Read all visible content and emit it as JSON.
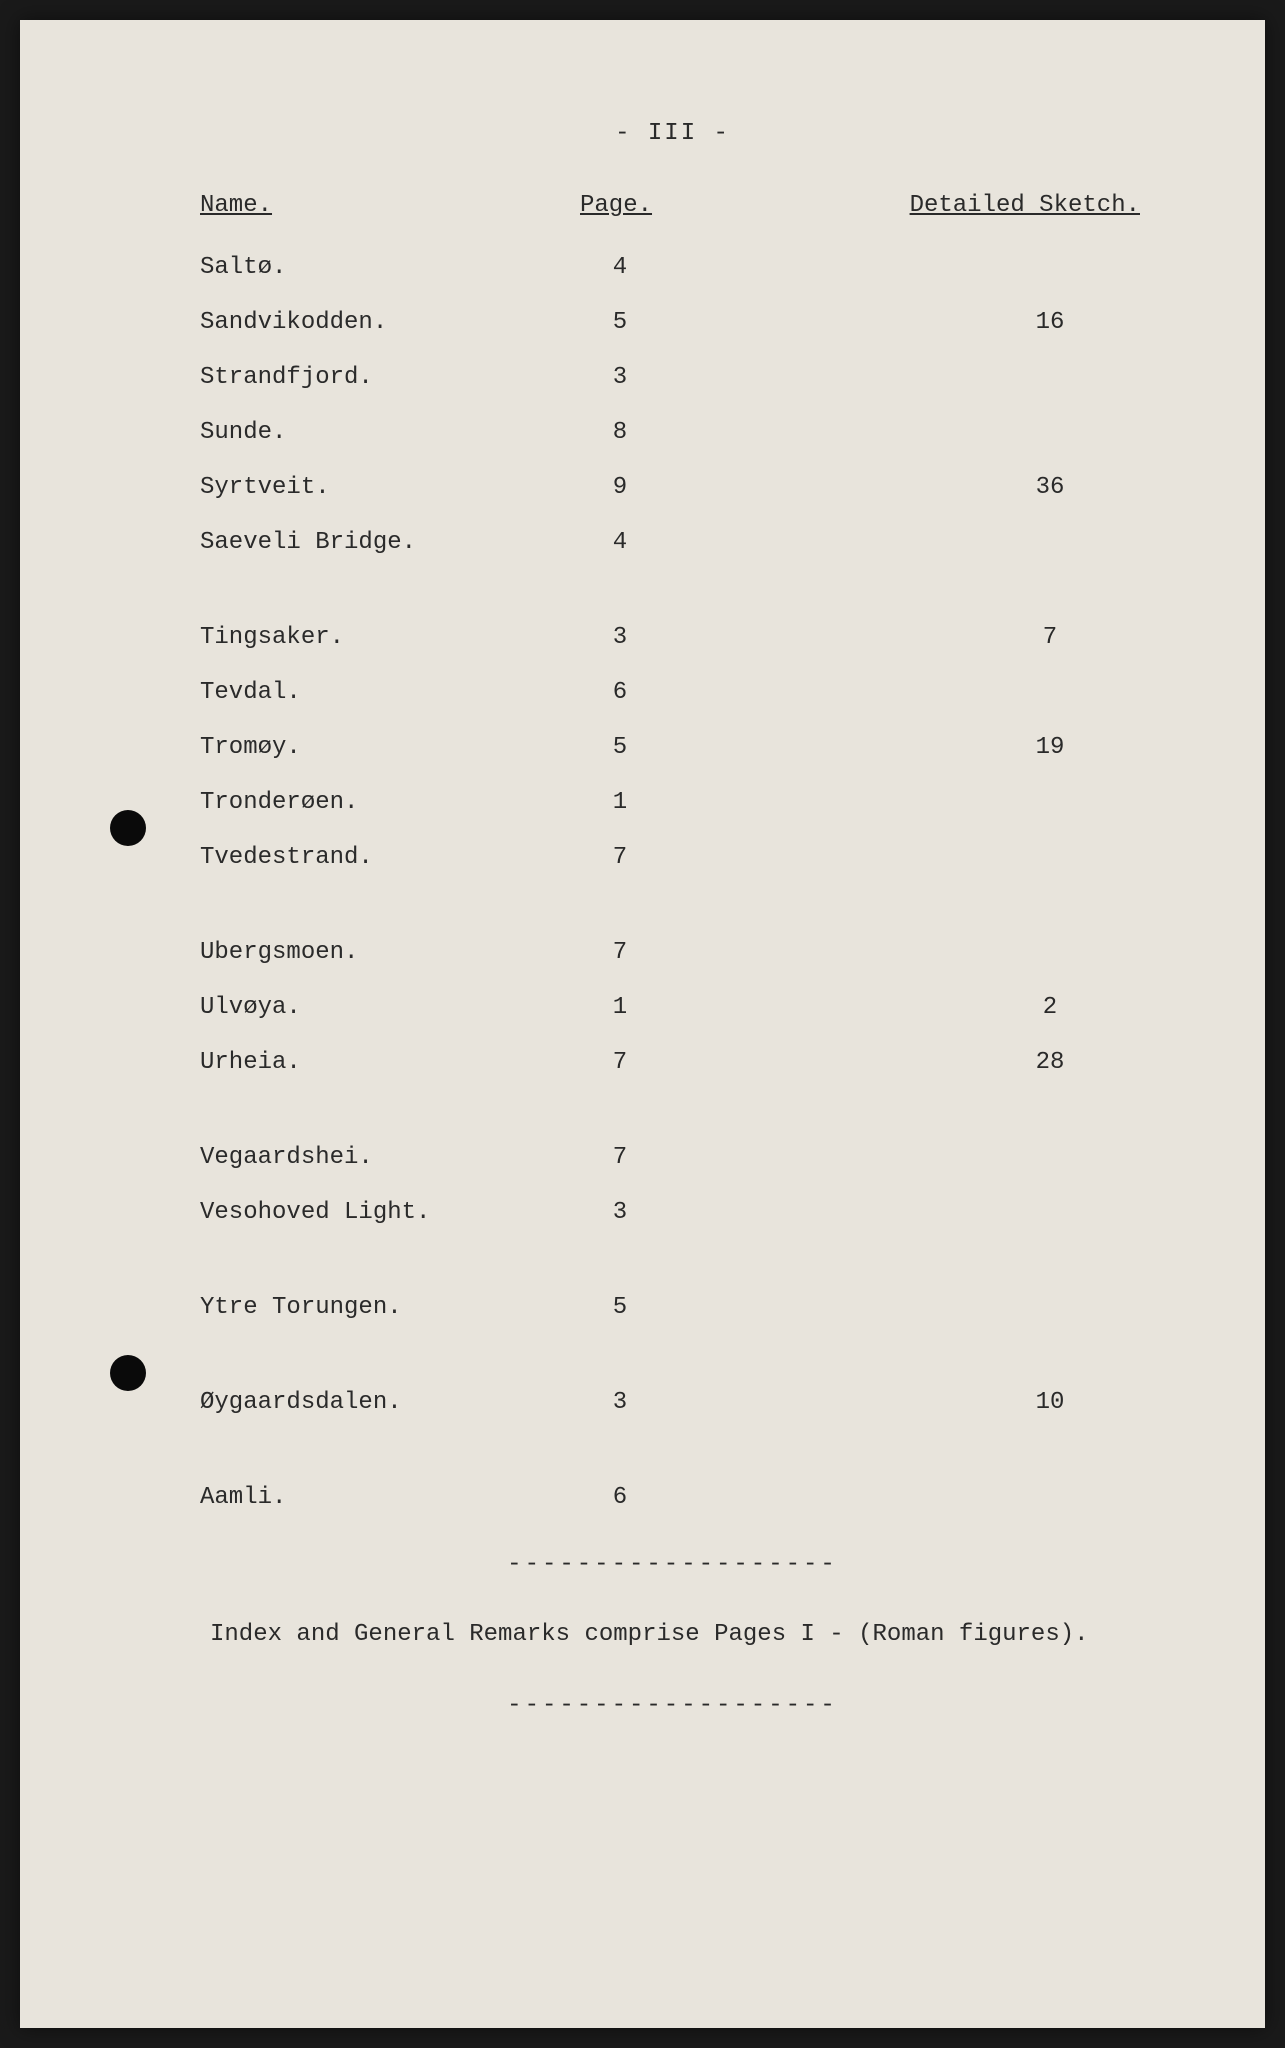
{
  "page_number": "- III -",
  "headers": {
    "name": "Name.",
    "page": "Page.",
    "sketch": "Detailed Sketch."
  },
  "sections": [
    {
      "rows": [
        {
          "name": "Saltø.",
          "page": "4",
          "sketch": ""
        },
        {
          "name": "Sandvikodden.",
          "page": "5",
          "sketch": "16"
        },
        {
          "name": "Strandfjord.",
          "page": "3",
          "sketch": ""
        },
        {
          "name": "Sunde.",
          "page": "8",
          "sketch": ""
        },
        {
          "name": "Syrtveit.",
          "page": "9",
          "sketch": "36"
        },
        {
          "name": "Saeveli Bridge.",
          "page": "4",
          "sketch": ""
        }
      ]
    },
    {
      "rows": [
        {
          "name": "Tingsaker.",
          "page": "3",
          "sketch": "7"
        },
        {
          "name": "Tevdal.",
          "page": "6",
          "sketch": ""
        },
        {
          "name": "Tromøy.",
          "page": "5",
          "sketch": "19"
        },
        {
          "name": "Tronderøen.",
          "page": "1",
          "sketch": ""
        },
        {
          "name": "Tvedestrand.",
          "page": "7",
          "sketch": ""
        }
      ]
    },
    {
      "rows": [
        {
          "name": "Ubergsmoen.",
          "page": "7",
          "sketch": ""
        },
        {
          "name": "Ulvøya.",
          "page": "1",
          "sketch": "2"
        },
        {
          "name": "Urheia.",
          "page": "7",
          "sketch": "28"
        }
      ]
    },
    {
      "rows": [
        {
          "name": "Vegaardshei.",
          "page": "7",
          "sketch": ""
        },
        {
          "name": "Vesohoved Light.",
          "page": "3",
          "sketch": ""
        }
      ]
    },
    {
      "rows": [
        {
          "name": "Ytre Torungen.",
          "page": "5",
          "sketch": ""
        }
      ]
    },
    {
      "rows": [
        {
          "name": "Øygaardsdalen.",
          "page": "3",
          "sketch": "10"
        }
      ]
    },
    {
      "rows": [
        {
          "name": "Aamli.",
          "page": "6",
          "sketch": ""
        }
      ]
    }
  ],
  "dashed": "-------------------",
  "footnote": "Index and General Remarks comprise Pages I -   (Roman figures).",
  "colors": {
    "page_bg": "#e8e4dc",
    "text": "#2a2a2a",
    "body_bg": "#1a1a1a"
  },
  "typography": {
    "font_family": "Courier New, Courier, monospace",
    "font_size": 24
  }
}
